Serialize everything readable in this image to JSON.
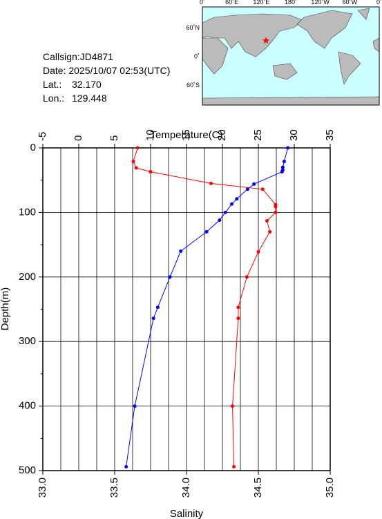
{
  "info": {
    "callsign": "Callsign:JD4871",
    "date": "Date:  2025/10/07 02:53(UTC)",
    "lat_label": "Lat.:",
    "lat": "32.170",
    "lon_label": "Lon.:",
    "lon": "129.448"
  },
  "map": {
    "top_labels": [
      "0˚",
      "60˚E",
      "120˚E",
      "180˚",
      "120˚W",
      "60˚W",
      "0˚"
    ],
    "left_labels": [
      "60˚N",
      "0˚",
      "60˚S"
    ]
  },
  "chart_data": {
    "type": "line",
    "x2label": "Temperature(C)",
    "xlabel": "Salinity",
    "ylabel": "Depth(m)",
    "x2lim": [
      -5,
      35
    ],
    "x2ticks": [
      -5,
      0,
      5,
      10,
      15,
      20,
      25,
      30,
      35
    ],
    "xlim": [
      33,
      35
    ],
    "xticks": [
      {
        "value": 33,
        "label": "33.0"
      },
      33.5,
      {
        "value": 34,
        "label": "34.0"
      },
      34.5,
      {
        "value": 35,
        "label": "35.0"
      }
    ],
    "ylim": [
      0,
      500
    ],
    "yticks": [
      0,
      100,
      200,
      300,
      400,
      500
    ],
    "y_inverted": true,
    "grid": true,
    "series": [
      {
        "color": "#0000ff",
        "axis": "x2",
        "depth": [
          0,
          21,
          30,
          34,
          37,
          56,
          64,
          79,
          87,
          100,
          112,
          130,
          160,
          200,
          247,
          264,
          400,
          494
        ],
        "values": [
          29.1,
          28.6,
          28.4,
          28.4,
          28.3,
          24.4,
          23.5,
          22.0,
          21.3,
          20.4,
          19.6,
          17.8,
          14.2,
          12.7,
          11.0,
          10.4,
          7.8,
          6.6
        ]
      },
      {
        "color": "#ff0000",
        "axis": "x",
        "depth": [
          0,
          21,
          31,
          37,
          55,
          64,
          88,
          91,
          100,
          113,
          130,
          161,
          200,
          247,
          264,
          400,
          494
        ],
        "values": [
          33.66,
          33.63,
          33.65,
          33.75,
          34.17,
          34.53,
          34.62,
          34.62,
          34.62,
          34.56,
          34.58,
          34.5,
          34.42,
          34.36,
          34.36,
          34.32,
          34.33
        ]
      }
    ]
  }
}
